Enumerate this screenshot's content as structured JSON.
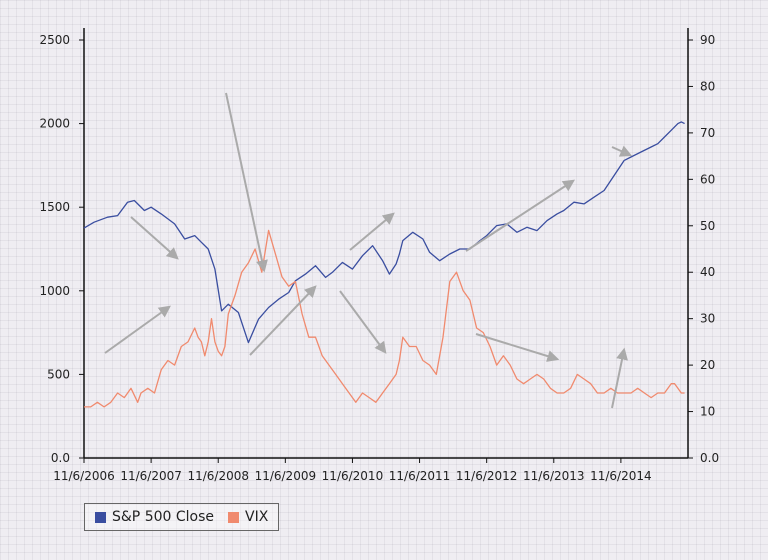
{
  "chart_data": {
    "type": "line",
    "x_tick_labels": [
      "11/6/2006",
      "11/6/2007",
      "11/6/2008",
      "11/6/2009",
      "11/6/2010",
      "11/6/2011",
      "11/6/2012",
      "11/6/2013",
      "11/6/2014"
    ],
    "x_range": [
      2006.85,
      2015.85
    ],
    "y_left": {
      "ylim": [
        0,
        2500
      ],
      "ticks": [
        "0.0",
        "500",
        "1000",
        "1500",
        "2000",
        "2500"
      ]
    },
    "y_right": {
      "ylim": [
        0,
        90
      ],
      "ticks": [
        "0.0",
        "10",
        "20",
        "30",
        "40",
        "50",
        "60",
        "70",
        "80",
        "90"
      ]
    },
    "series": [
      {
        "name": "S&P 500 Close",
        "color": "#3a4ea0",
        "axis": "left",
        "x": [
          2006.85,
          2007.0,
          2007.2,
          2007.35,
          2007.5,
          2007.6,
          2007.75,
          2007.85,
          2008.0,
          2008.2,
          2008.35,
          2008.5,
          2008.6,
          2008.7,
          2008.8,
          2008.9,
          2009.0,
          2009.15,
          2009.3,
          2009.45,
          2009.6,
          2009.75,
          2009.9,
          2010.0,
          2010.15,
          2010.3,
          2010.45,
          2010.55,
          2010.7,
          2010.85,
          2011.0,
          2011.15,
          2011.3,
          2011.4,
          2011.5,
          2011.55,
          2011.6,
          2011.75,
          2011.9,
          2012.0,
          2012.15,
          2012.3,
          2012.45,
          2012.6,
          2012.75,
          2012.85,
          2013.0,
          2013.15,
          2013.3,
          2013.45,
          2013.6,
          2013.75,
          2013.9,
          2014.0,
          2014.15,
          2014.3,
          2014.45,
          2014.6,
          2014.75,
          2014.9,
          2015.0,
          2015.15,
          2015.3,
          2015.4,
          2015.5,
          2015.6,
          2015.7,
          2015.75,
          2015.8
        ],
        "values": [
          1375,
          1410,
          1440,
          1450,
          1530,
          1540,
          1480,
          1500,
          1460,
          1400,
          1310,
          1330,
          1290,
          1250,
          1130,
          880,
          920,
          870,
          690,
          830,
          900,
          950,
          990,
          1060,
          1100,
          1150,
          1080,
          1110,
          1170,
          1130,
          1210,
          1270,
          1180,
          1100,
          1160,
          1220,
          1300,
          1350,
          1310,
          1230,
          1180,
          1220,
          1250,
          1250,
          1300,
          1330,
          1390,
          1400,
          1350,
          1380,
          1360,
          1420,
          1460,
          1480,
          1530,
          1520,
          1560,
          1600,
          1690,
          1780,
          1800,
          1830,
          1860,
          1880,
          1920,
          1960,
          2000,
          2010,
          2000
        ]
      },
      {
        "name": "VIX",
        "color": "#f08a6e",
        "axis": "right",
        "x": [
          2006.85,
          2006.95,
          2007.05,
          2007.15,
          2007.25,
          2007.35,
          2007.45,
          2007.55,
          2007.65,
          2007.7,
          2007.8,
          2007.9,
          2008.0,
          2008.1,
          2008.2,
          2008.3,
          2008.4,
          2008.5,
          2008.55,
          2008.6,
          2008.65,
          2008.7,
          2008.75,
          2008.8,
          2008.85,
          2008.9,
          2008.95,
          2009.0,
          2009.1,
          2009.2,
          2009.3,
          2009.4,
          2009.5,
          2009.6,
          2009.7,
          2009.8,
          2009.9,
          2010.0,
          2010.1,
          2010.2,
          2010.3,
          2010.35,
          2010.4,
          2010.5,
          2010.6,
          2010.7,
          2010.8,
          2010.9,
          2011.0,
          2011.1,
          2011.2,
          2011.3,
          2011.4,
          2011.5,
          2011.55,
          2011.6,
          2011.7,
          2011.8,
          2011.9,
          2012.0,
          2012.1,
          2012.2,
          2012.3,
          2012.4,
          2012.5,
          2012.6,
          2012.7,
          2012.8,
          2012.9,
          2013.0,
          2013.1,
          2013.2,
          2013.3,
          2013.4,
          2013.5,
          2013.6,
          2013.7,
          2013.8,
          2013.9,
          2014.0,
          2014.1,
          2014.2,
          2014.3,
          2014.4,
          2014.5,
          2014.6,
          2014.7,
          2014.8,
          2014.9,
          2015.0,
          2015.1,
          2015.2,
          2015.3,
          2015.4,
          2015.5,
          2015.6,
          2015.65,
          2015.7,
          2015.75,
          2015.8
        ],
        "values": [
          11,
          11,
          12,
          11,
          12,
          14,
          13,
          15,
          12,
          14,
          15,
          14,
          19,
          21,
          20,
          24,
          25,
          28,
          26,
          25,
          22,
          25,
          30,
          25,
          23,
          22,
          24,
          31,
          35,
          40,
          42,
          45,
          40,
          49,
          44,
          39,
          37,
          38,
          31,
          26,
          26,
          24,
          22,
          20,
          18,
          16,
          14,
          12,
          14,
          13,
          12,
          14,
          16,
          18,
          21,
          26,
          24,
          24,
          21,
          20,
          18,
          26,
          38,
          40,
          36,
          34,
          28,
          27,
          24,
          20,
          22,
          20,
          17,
          16,
          17,
          18,
          17,
          15,
          14,
          14,
          15,
          18,
          17,
          16,
          14,
          14,
          15,
          14,
          14,
          14,
          15,
          14,
          13,
          14,
          14,
          16,
          16,
          15,
          14,
          14
        ]
      }
    ],
    "annotations": "arrows"
  },
  "legend": {
    "items": [
      {
        "label": "S&P 500 Close",
        "color": "#3a4ea0"
      },
      {
        "label": "VIX",
        "color": "#f08a6e"
      }
    ]
  }
}
